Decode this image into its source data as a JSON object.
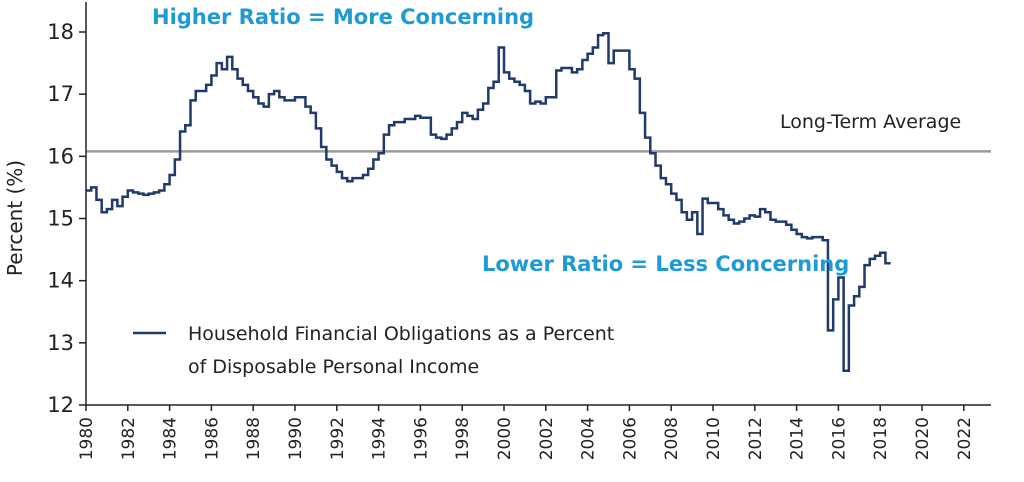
{
  "chart_data": {
    "type": "line",
    "title": "",
    "xlabel": "",
    "ylabel": "Percent (%)",
    "xlim": [
      1980,
      2023.3
    ],
    "ylim": [
      12,
      18.5
    ],
    "yticks": [
      12,
      13,
      14,
      15,
      16,
      17,
      18
    ],
    "xticks": [
      1980,
      1982,
      1984,
      1986,
      1988,
      1990,
      1992,
      1994,
      1996,
      1998,
      2000,
      2002,
      2004,
      2006,
      2008,
      2010,
      2012,
      2014,
      2016,
      2018,
      2020,
      2022
    ],
    "grid": false,
    "legend_position": "bottom-left",
    "reference_line": {
      "label": "Long-Term Average",
      "value": 16.08,
      "color": "#9a9a9a"
    },
    "annotations": [
      {
        "text": "Higher Ratio = More Concerning",
        "color": "#1e9ad6"
      },
      {
        "text": "Lower Ratio = Less Concerning",
        "color": "#1e9ad6"
      },
      {
        "text": "Long-Term Average",
        "color": "#222222"
      }
    ],
    "series": [
      {
        "name": "Household Financial Obligations as a Percent of Disposable Personal Income",
        "legend_lines": [
          "Household Financial Obligations as a Percent",
          "of Disposable Personal Income"
        ],
        "color": "#1f3a6b",
        "frequency": "quarterly",
        "start": 1980.0,
        "values": [
          15.45,
          15.5,
          15.3,
          15.1,
          15.15,
          15.3,
          15.2,
          15.35,
          15.45,
          15.42,
          15.4,
          15.38,
          15.4,
          15.42,
          15.45,
          15.55,
          15.7,
          15.95,
          16.4,
          16.5,
          16.9,
          17.05,
          17.05,
          17.15,
          17.3,
          17.5,
          17.4,
          17.6,
          17.4,
          17.25,
          17.15,
          17.05,
          16.95,
          16.85,
          16.8,
          17.0,
          17.05,
          16.95,
          16.9,
          16.9,
          16.95,
          16.95,
          16.8,
          16.7,
          16.45,
          16.15,
          15.95,
          15.85,
          15.75,
          15.65,
          15.6,
          15.65,
          15.65,
          15.7,
          15.8,
          15.95,
          16.05,
          16.35,
          16.5,
          16.55,
          16.55,
          16.6,
          16.6,
          16.65,
          16.62,
          16.62,
          16.35,
          16.3,
          16.28,
          16.35,
          16.45,
          16.55,
          16.7,
          16.65,
          16.6,
          16.75,
          16.85,
          17.1,
          17.2,
          17.75,
          17.35,
          17.25,
          17.2,
          17.15,
          17.05,
          16.85,
          16.88,
          16.85,
          16.95,
          16.95,
          17.38,
          17.42,
          17.42,
          17.35,
          17.4,
          17.55,
          17.65,
          17.75,
          17.95,
          17.98,
          17.5,
          17.7,
          17.7,
          17.7,
          17.4,
          17.25,
          16.7,
          16.3,
          16.05,
          15.85,
          15.65,
          15.55,
          15.4,
          15.3,
          15.1,
          14.98,
          15.1,
          14.75,
          15.32,
          15.25,
          15.25,
          15.15,
          15.05,
          14.98,
          14.92,
          14.95,
          15.0,
          15.05,
          15.03,
          15.15,
          15.1,
          14.98,
          14.95,
          14.95,
          14.9,
          14.82,
          14.75,
          14.7,
          14.68,
          14.7,
          14.7,
          14.65,
          13.2,
          13.7,
          14.05,
          12.55,
          13.6,
          13.75,
          13.9,
          14.25,
          14.35,
          14.4,
          14.45,
          14.28
        ]
      }
    ]
  }
}
